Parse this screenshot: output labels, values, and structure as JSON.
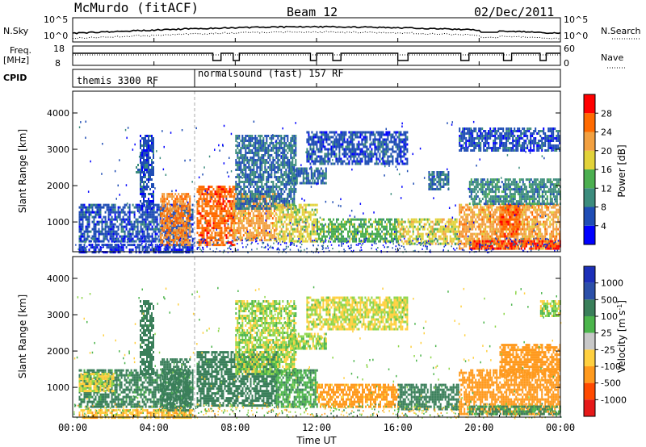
{
  "header": {
    "station": "McMurdo (fitACF)",
    "beam": "Beam 12",
    "date": "02/Dec/2011"
  },
  "top_panels": {
    "nsky_label": "N.Sky",
    "nsky_ticks": [
      "10^5",
      "10^0"
    ],
    "nsearch_label": "N.Search",
    "nsearch_ticks": [
      "10^5",
      "10^0"
    ],
    "freq_label": "Freq.",
    "freq_unit": "[MHz]",
    "freq_ticks": [
      "18",
      "8"
    ],
    "nave_label": "Nave",
    "nave_ticks": [
      "60",
      "0"
    ],
    "cpid_label": "CPID",
    "cpid_modes": [
      {
        "name": "themis 3300 RF",
        "start_hour": 0
      },
      {
        "name": "normalsound (fast) 157 RF",
        "start_hour": 6
      }
    ]
  },
  "x_axis": {
    "label": "Time UT",
    "ticks": [
      "00:00",
      "04:00",
      "08:00",
      "12:00",
      "16:00",
      "20:00",
      "00:00"
    ],
    "range_hours": [
      0,
      24
    ]
  },
  "colors": {
    "power_scale": [
      "#0000ff",
      "#1f4db5",
      "#3c8c7d",
      "#4caf50",
      "#e2d23a",
      "#f2a040",
      "#ff6a00",
      "#ff0000"
    ],
    "velocity_scale": [
      "#e61919",
      "#ff4a00",
      "#ff9a1e",
      "#ffd040",
      "#c8c8c8",
      "#8ed64a",
      "#4cb54c",
      "#3a7f5a",
      "#2b4fa8",
      "#1c2fb8"
    ]
  },
  "chart_data": [
    {
      "type": "heatmap",
      "title": "Power",
      "ylabel": "Slant Range [km]",
      "yticks": [
        1000,
        2000,
        3000,
        4000
      ],
      "ylim": [
        180,
        4600
      ],
      "colorbar": {
        "label": "Power [dB]",
        "ticks": [
          "4",
          "8",
          "12",
          "16",
          "20",
          "24",
          "28"
        ],
        "range": [
          0,
          32
        ]
      },
      "regions": [
        {
          "t0": 0.3,
          "t1": 5.9,
          "r0": 500,
          "r1": 1500,
          "level": 6
        },
        {
          "t0": 0.3,
          "t1": 5.9,
          "r0": 180,
          "r1": 400,
          "level": 5
        },
        {
          "t0": 3.1,
          "t1": 3.5,
          "r0": 2400,
          "r1": 2600,
          "level": 8
        },
        {
          "t0": 3.3,
          "t1": 4.0,
          "r0": 1400,
          "r1": 3400,
          "level": 6
        },
        {
          "t0": 4.3,
          "t1": 5.8,
          "r0": 400,
          "r1": 1800,
          "level": 24
        },
        {
          "t0": 6.1,
          "t1": 8.0,
          "r0": 400,
          "r1": 2000,
          "level": 26
        },
        {
          "t0": 7.9,
          "t1": 10.0,
          "r0": 500,
          "r1": 1800,
          "level": 22
        },
        {
          "t0": 8.0,
          "t1": 11.0,
          "r0": 1400,
          "r1": 3400,
          "level": 8
        },
        {
          "t0": 10.0,
          "t1": 12.0,
          "r0": 500,
          "r1": 1500,
          "level": 18
        },
        {
          "t0": 10.6,
          "t1": 12.5,
          "r0": 2100,
          "r1": 2500,
          "level": 8
        },
        {
          "t0": 12.0,
          "t1": 16.0,
          "r0": 500,
          "r1": 1100,
          "level": 14
        },
        {
          "t0": 11.5,
          "t1": 16.5,
          "r0": 2600,
          "r1": 3500,
          "level": 6
        },
        {
          "t0": 16.0,
          "t1": 19.0,
          "r0": 400,
          "r1": 1100,
          "level": 18
        },
        {
          "t0": 17.5,
          "t1": 18.5,
          "r0": 1900,
          "r1": 2400,
          "level": 8
        },
        {
          "t0": 19.0,
          "t1": 24.0,
          "r0": 300,
          "r1": 1500,
          "level": 22
        },
        {
          "t0": 19.5,
          "t1": 24.0,
          "r0": 300,
          "r1": 500,
          "level": 28
        },
        {
          "t0": 21.0,
          "t1": 22.0,
          "r0": 600,
          "r1": 1500,
          "level": 26
        },
        {
          "t0": 19.5,
          "t1": 24.0,
          "r0": 1500,
          "r1": 2200,
          "level": 10
        },
        {
          "t0": 19.0,
          "t1": 24.0,
          "r0": 3000,
          "r1": 3600,
          "level": 6
        }
      ]
    },
    {
      "type": "heatmap",
      "title": "Velocity",
      "ylabel": "Slant Range [km]",
      "yticks": [
        1000,
        2000,
        3000,
        4000
      ],
      "ylim": [
        180,
        4600
      ],
      "colorbar": {
        "label": "Velocity [m s^-1]",
        "ticks": [
          "1000",
          "500",
          "100",
          "25",
          "-25",
          "-100",
          "-500",
          "-1000"
        ],
        "range": [
          -1200,
          1200
        ]
      },
      "regions": [
        {
          "t0": 0.3,
          "t1": 5.9,
          "r0": 500,
          "r1": 1500,
          "level": 150
        },
        {
          "t0": 0.3,
          "t1": 2.0,
          "r0": 900,
          "r1": 1400,
          "level": -40
        },
        {
          "t0": 0.3,
          "t1": 5.9,
          "r0": 180,
          "r1": 400,
          "level": -80
        },
        {
          "t0": 3.3,
          "t1": 4.0,
          "r0": 1400,
          "r1": 3400,
          "level": 300
        },
        {
          "t0": 4.3,
          "t1": 5.8,
          "r0": 400,
          "r1": 1800,
          "level": 300
        },
        {
          "t0": 6.1,
          "t1": 10.0,
          "r0": 500,
          "r1": 2000,
          "level": 400
        },
        {
          "t0": 8.0,
          "t1": 11.0,
          "r0": 1400,
          "r1": 3400,
          "level": 0
        },
        {
          "t0": 10.0,
          "t1": 12.0,
          "r0": 500,
          "r1": 1500,
          "level": 80
        },
        {
          "t0": 10.6,
          "t1": 12.5,
          "r0": 2100,
          "r1": 2500,
          "level": 0
        },
        {
          "t0": 12.0,
          "t1": 16.0,
          "r0": 500,
          "r1": 1100,
          "level": -150
        },
        {
          "t0": 11.5,
          "t1": 16.5,
          "r0": 2600,
          "r1": 3500,
          "level": -30
        },
        {
          "t0": 16.0,
          "t1": 19.0,
          "r0": 400,
          "r1": 1100,
          "level": 350
        },
        {
          "t0": 19.0,
          "t1": 24.0,
          "r0": 300,
          "r1": 1500,
          "level": -200
        },
        {
          "t0": 19.5,
          "t1": 24.0,
          "r0": 300,
          "r1": 500,
          "level": 120
        },
        {
          "t0": 21.0,
          "t1": 24.0,
          "r0": 1300,
          "r1": 2200,
          "level": -200
        },
        {
          "t0": 23.0,
          "t1": 24.0,
          "r0": 3000,
          "r1": 3400,
          "level": 0
        }
      ]
    }
  ]
}
